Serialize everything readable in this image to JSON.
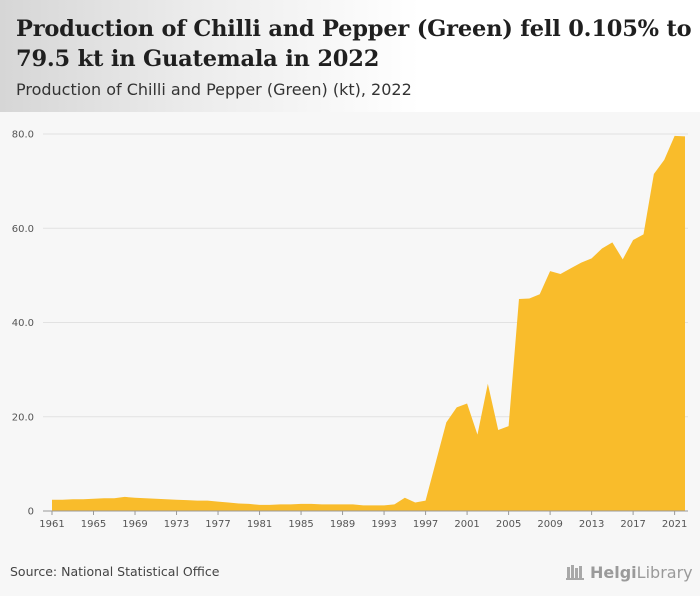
{
  "header": {
    "title": "Production of Chilli and Pepper (Green) fell 0.105% to 79.5 kt in Guatemala in 2022",
    "subtitle": "Production of Chilli and Pepper (Green) (kt), 2022"
  },
  "footer": {
    "source": "Source: National Statistical Office",
    "logo_brand": "Helgi",
    "logo_rest": "Library"
  },
  "colors": {
    "area_fill": "#f9bc2b",
    "grid": "#e2e2e2",
    "axis": "#999999"
  },
  "chart_data": {
    "type": "area",
    "title": "Production of Chilli and Pepper (Green) (kt), 2022",
    "xlabel": "",
    "ylabel": "",
    "ylim": [
      0,
      80
    ],
    "yticks": [
      0,
      20,
      40,
      60,
      80
    ],
    "ytick_labels": [
      "0",
      "20.0",
      "40.0",
      "60.0",
      "80.0"
    ],
    "xticks": [
      1961,
      1965,
      1969,
      1973,
      1977,
      1981,
      1985,
      1989,
      1993,
      1997,
      2001,
      2005,
      2009,
      2013,
      2017,
      2021
    ],
    "grid": true,
    "legend": "none",
    "series": [
      {
        "x": [
          1961,
          1962,
          1963,
          1964,
          1965,
          1966,
          1967,
          1968,
          1969,
          1970,
          1971,
          1972,
          1973,
          1974,
          1975,
          1976,
          1977,
          1978,
          1979,
          1980,
          1981,
          1982,
          1983,
          1984,
          1985,
          1986,
          1987,
          1988,
          1989,
          1990,
          1991,
          1992,
          1993,
          1994,
          1995,
          1996,
          1997,
          1998,
          1999,
          2000,
          2001,
          2002,
          2003,
          2004,
          2005,
          2006,
          2007,
          2008,
          2009,
          2010,
          2011,
          2012,
          2013,
          2014,
          2015,
          2016,
          2017,
          2018,
          2019,
          2020,
          2021,
          2022
        ],
        "values": [
          2.4,
          2.4,
          2.5,
          2.5,
          2.6,
          2.7,
          2.7,
          3.0,
          2.8,
          2.7,
          2.6,
          2.5,
          2.4,
          2.3,
          2.2,
          2.2,
          2.0,
          1.8,
          1.6,
          1.5,
          1.3,
          1.3,
          1.4,
          1.4,
          1.5,
          1.5,
          1.4,
          1.4,
          1.4,
          1.4,
          1.2,
          1.2,
          1.2,
          1.4,
          2.8,
          1.8,
          2.2,
          10.5,
          18.8,
          22.0,
          22.8,
          16.2,
          27.0,
          17.2,
          18.0,
          45.0,
          45.1,
          46.0,
          50.9,
          50.3,
          51.5,
          52.7,
          53.6,
          55.7,
          57.0,
          53.4,
          57.5,
          58.7,
          71.5,
          74.5,
          79.6,
          79.5
        ]
      }
    ]
  }
}
